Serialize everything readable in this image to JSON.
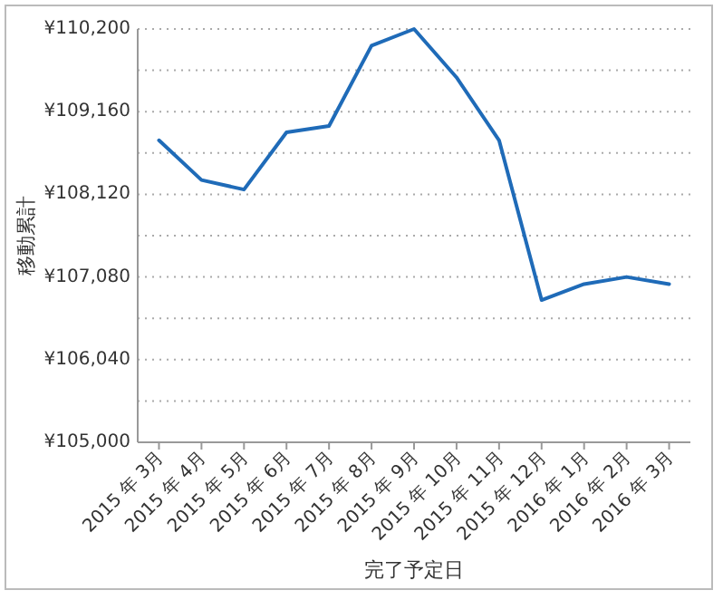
{
  "chart_data": {
    "type": "line",
    "xlabel": "完了予定日",
    "ylabel": "移動累計",
    "categories": [
      "2015 年 3月",
      "2015 年 4月",
      "2015 年 5月",
      "2015 年 6月",
      "2015 年 7月",
      "2015 年 8月",
      "2015 年 9月",
      "2015 年 10月",
      "2015 年 11月",
      "2015 年 12月",
      "2016 年 1月",
      "2016 年 2月",
      "2016 年 3月"
    ],
    "series": [
      {
        "color": "#1f6bb8",
        "values": [
          108800,
          108300,
          108180,
          108900,
          108980,
          109990,
          110200,
          109590,
          108800,
          106790,
          106990,
          107080,
          106990
        ]
      }
    ],
    "ylim": [
      105000,
      110200
    ],
    "yticks": [
      {
        "value": 105000,
        "label": "¥105,000"
      },
      {
        "value": 105520,
        "label": null
      },
      {
        "value": 106040,
        "label": "¥106,040"
      },
      {
        "value": 106560,
        "label": null
      },
      {
        "value": 107080,
        "label": "¥107,080"
      },
      {
        "value": 107600,
        "label": null
      },
      {
        "value": 108120,
        "label": "¥108,120"
      },
      {
        "value": 108640,
        "label": null
      },
      {
        "value": 109160,
        "label": "¥109,160"
      },
      {
        "value": 109680,
        "label": null
      },
      {
        "value": 110200,
        "label": "¥110,200"
      }
    ],
    "grid": "y",
    "marker": "none",
    "line_style": "solid"
  }
}
